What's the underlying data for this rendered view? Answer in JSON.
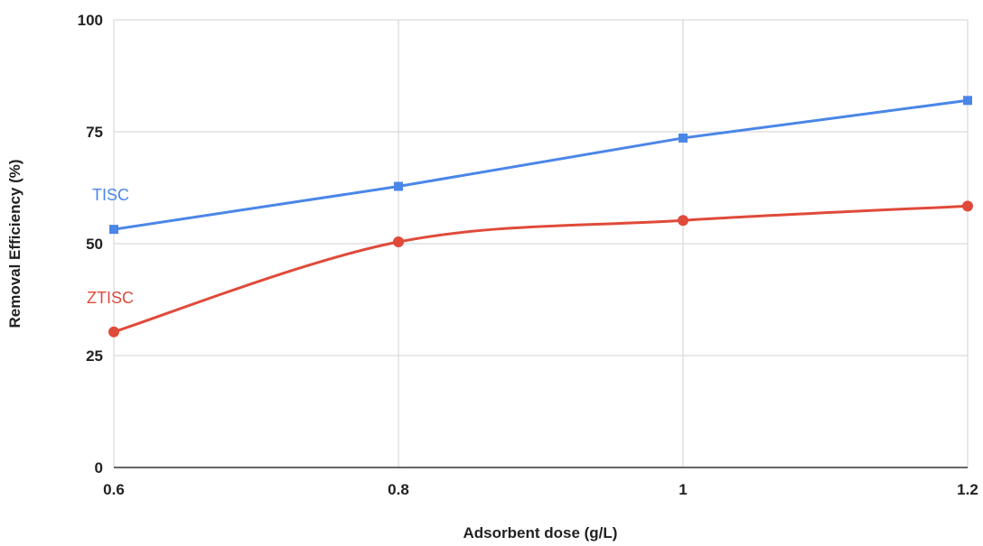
{
  "chart_data": {
    "type": "line",
    "title": "",
    "xlabel": "Adsorbent dose (g/L)",
    "ylabel": "Removal Efficiency (%)",
    "x": [
      0.6,
      0.8,
      1,
      1.2
    ],
    "x_tick_labels": [
      "0.6",
      "0.8",
      "1",
      "1.2"
    ],
    "xlim": [
      0.6,
      1.2
    ],
    "ylim": [
      0,
      100
    ],
    "y_ticks": [
      0,
      25,
      50,
      75,
      100
    ],
    "y_tick_labels": [
      "0",
      "25",
      "50",
      "75",
      "100"
    ],
    "grid": true,
    "series": [
      {
        "name": "TISC",
        "values": [
          53.2,
          62.8,
          73.6,
          82.0
        ],
        "color": "#4a86e8",
        "marker": "square",
        "smooth": false
      },
      {
        "name": "ZTISC",
        "values": [
          30.3,
          50.4,
          55.2,
          58.4
        ],
        "color": "#e04a3a",
        "marker": "circle",
        "smooth": true
      }
    ]
  }
}
